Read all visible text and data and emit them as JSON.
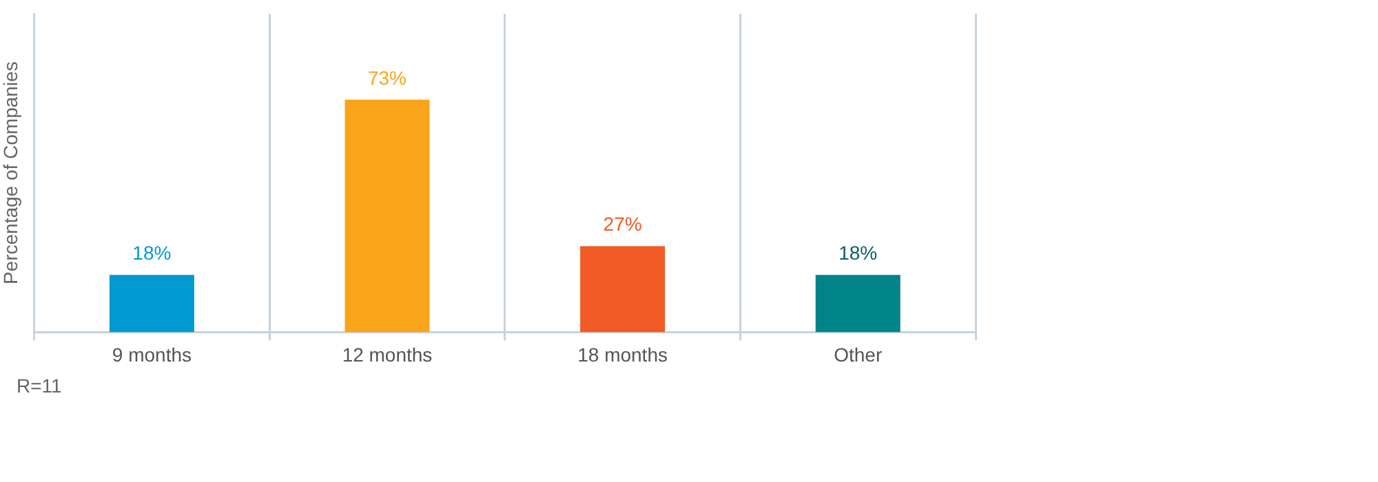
{
  "chart_data": {
    "type": "bar",
    "ylabel": "Percentage of Companies",
    "categories": [
      "9 months",
      "12 months",
      "18 months",
      "Other"
    ],
    "values": [
      18,
      73,
      27,
      18
    ],
    "colors": [
      "#0099d0",
      "#f9a51a",
      "#f15a24",
      "#008489"
    ],
    "value_labels": [
      "18%",
      "73%",
      "27%",
      "18%"
    ],
    "ylim": [
      0,
      100
    ],
    "tick_labels": "x",
    "grid": "x",
    "legend": false,
    "annotations": [
      "R=11"
    ]
  }
}
